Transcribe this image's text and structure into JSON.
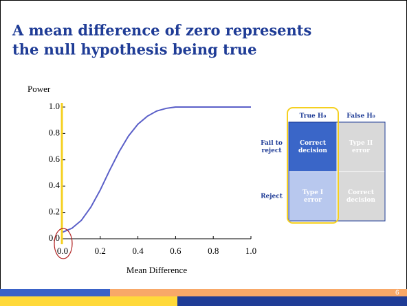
{
  "title_lines": [
    "A mean difference of zero represents",
    "the null hypothesis being true"
  ],
  "chart_data": {
    "type": "line",
    "ylabel": "Power",
    "xlabel": "Mean Difference",
    "x": [
      0,
      0.05,
      0.1,
      0.15,
      0.2,
      0.25,
      0.3,
      0.35,
      0.4,
      0.45,
      0.5,
      0.55,
      0.6,
      0.7,
      0.8,
      0.9,
      1.0
    ],
    "series": [
      {
        "name": "Power",
        "color": "#5a5fc8",
        "values": [
          0.05,
          0.08,
          0.14,
          0.24,
          0.37,
          0.52,
          0.66,
          0.78,
          0.87,
          0.93,
          0.97,
          0.99,
          1.0,
          1.0,
          1.0,
          1.0,
          1.0
        ]
      }
    ],
    "xlim": [
      0,
      1
    ],
    "ylim": [
      0,
      1
    ],
    "xticks": [
      {
        "value": 0,
        "label": "0.0"
      },
      0.2,
      0.4,
      0.6,
      0.8,
      {
        "value": 1,
        "label": "1.0"
      }
    ],
    "yticks": [
      {
        "value": 0,
        "label": "0.0"
      },
      0.2,
      0.4,
      0.6,
      0.8,
      {
        "value": 1,
        "label": "1.0"
      }
    ]
  },
  "table": {
    "columns": [
      "True H₀",
      "False H₀"
    ],
    "row_labels": [
      [
        "Fail to",
        "reject"
      ],
      [
        "Reject"
      ]
    ],
    "rows": [
      [
        [
          "Correct",
          "decision"
        ],
        [
          "Type II",
          "error"
        ]
      ],
      [
        [
          "Type I",
          "error"
        ],
        [
          "Correct",
          "decision"
        ]
      ]
    ]
  },
  "page_number": "6"
}
